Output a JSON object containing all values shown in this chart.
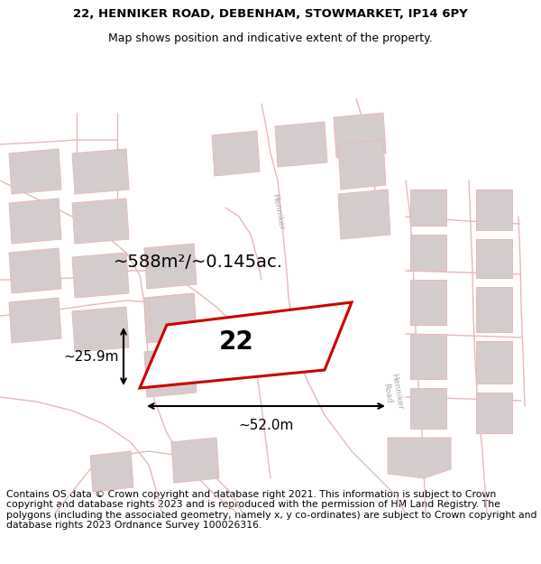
{
  "title_line1": "22, HENNIKER ROAD, DEBENHAM, STOWMARKET, IP14 6PY",
  "title_line2": "Map shows position and indicative extent of the property.",
  "footer_text": "Contains OS data © Crown copyright and database right 2021. This information is subject to Crown copyright and database rights 2023 and is reproduced with the permission of HM Land Registry. The polygons (including the associated geometry, namely x, y co-ordinates) are subject to Crown copyright and database rights 2023 Ordnance Survey 100026316.",
  "area_label": "~588m²/~0.145ac.",
  "width_label": "~52.0m",
  "height_label": "~25.9m",
  "plot_number": "22",
  "bg_color": "#ffffff",
  "map_bg": "#f9f6f6",
  "road_color": "#e8b8b8",
  "building_color": "#d4cccc",
  "plot_edge_color": "#cc0000",
  "road_label_color": "#aaaaaa",
  "title_fontsize": 9.5,
  "footer_fontsize": 7.8,
  "plot_number_fontsize": 20,
  "area_label_fontsize": 14
}
